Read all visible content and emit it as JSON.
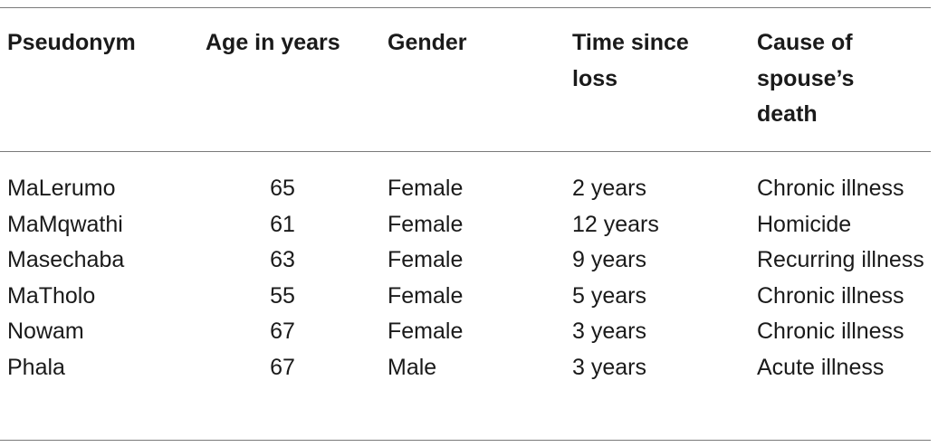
{
  "table": {
    "header": [
      "Pseudonym",
      "Age in years",
      "Gender",
      "Time since loss",
      "Cause of spouse’s death"
    ],
    "rows": [
      [
        "MaLerumo",
        "65",
        "Female",
        "2 years",
        "Chronic illness"
      ],
      [
        "MaMqwathi",
        "61",
        "Female",
        "12 years",
        "Homicide"
      ],
      [
        "Masechaba",
        "63",
        "Female",
        "9 years",
        "Recurring illness"
      ],
      [
        "MaTholo",
        "55",
        "Female",
        "5 years",
        "Chronic illness"
      ],
      [
        "Nowam",
        "67",
        "Female",
        "3 years",
        "Chronic illness"
      ],
      [
        "Phala",
        "67",
        "Male",
        "3 years",
        "Acute illness"
      ]
    ]
  }
}
